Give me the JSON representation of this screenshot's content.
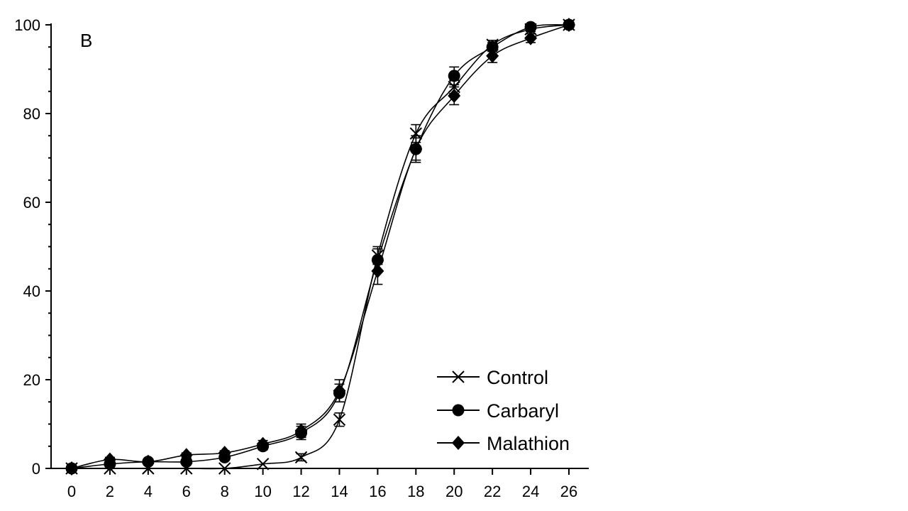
{
  "chart_data": {
    "type": "line",
    "title": "",
    "panel_label": "B",
    "xlabel": "",
    "ylabel": "",
    "xlim": [
      0,
      26
    ],
    "ylim": [
      0,
      100
    ],
    "x_ticks": [
      0,
      2,
      4,
      6,
      8,
      10,
      12,
      14,
      16,
      18,
      20,
      22,
      24,
      26
    ],
    "y_ticks": [
      0,
      20,
      40,
      60,
      80,
      100
    ],
    "y_minor_step": 5,
    "grid": false,
    "legend_position": "bottom-right",
    "x": [
      0,
      2,
      4,
      6,
      8,
      10,
      12,
      14,
      16,
      18,
      20,
      22,
      24,
      26
    ],
    "series": [
      {
        "name": "Control",
        "marker": "x",
        "values": [
          0,
          0,
          0,
          0,
          0,
          1,
          2.5,
          11,
          48,
          75.5,
          86,
          95.5,
          99,
          100
        ],
        "errors": [
          0,
          0,
          0,
          0,
          0,
          0,
          0.8,
          1.5,
          2.0,
          2.0,
          1.5,
          1.0,
          0.5,
          0
        ]
      },
      {
        "name": "Carbaryl",
        "marker": "circle",
        "values": [
          0,
          1,
          1.5,
          1.5,
          2.5,
          5,
          8,
          17,
          47,
          72,
          88.5,
          95,
          99.5,
          100
        ],
        "errors": [
          0,
          0.5,
          0.5,
          0.5,
          0.5,
          0.8,
          1.5,
          2.0,
          2.5,
          3.0,
          2.0,
          1.0,
          0.5,
          0.5
        ]
      },
      {
        "name": "Malathion",
        "marker": "diamond",
        "values": [
          0,
          2,
          1.5,
          3,
          3.5,
          5.5,
          8.5,
          17.5,
          44.5,
          72,
          84,
          93,
          97,
          100
        ],
        "errors": [
          0,
          0.5,
          0.5,
          0.5,
          0.5,
          0.8,
          1.5,
          2.5,
          3.0,
          2.5,
          2.0,
          1.5,
          1.0,
          0.5
        ]
      }
    ]
  }
}
